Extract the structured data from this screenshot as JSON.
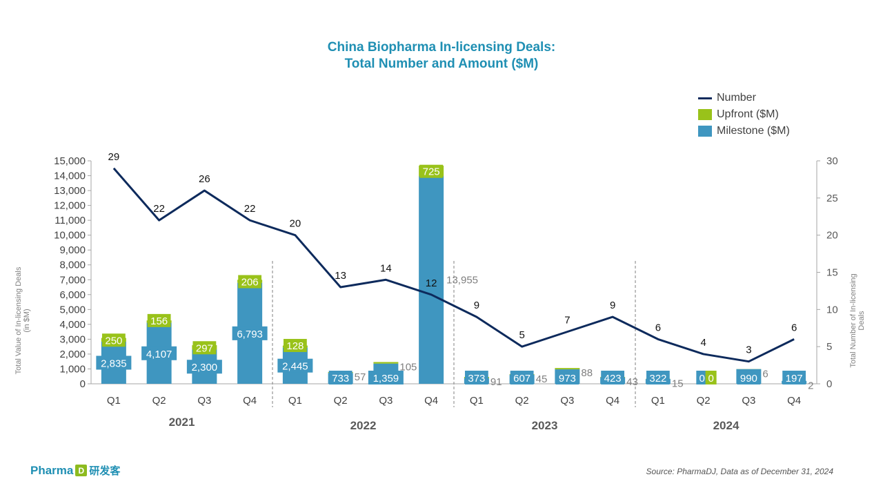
{
  "logo": {
    "brand": "Pharma",
    "mark": "D",
    "cn": "研发客"
  },
  "source": "Source: PharmaDJ, Data as of December 31, 2024",
  "colors": {
    "title": "#1f8fb3",
    "milestone": "#3f96c0",
    "upfront": "#99c21a",
    "number": "#0d2a5c",
    "axis": "#808080"
  },
  "chart_data": {
    "type": "bar",
    "title_lines": [
      "China Biopharma In-licensing Deals:",
      "Total Number and Amount ($M)"
    ],
    "categories": [
      "Q1",
      "Q2",
      "Q3",
      "Q4",
      "Q1",
      "Q2",
      "Q3",
      "Q4",
      "Q1",
      "Q2",
      "Q3",
      "Q4",
      "Q1",
      "Q2",
      "Q3",
      "Q4"
    ],
    "years": [
      {
        "label": "2021",
        "start": 0,
        "end": 3
      },
      {
        "label": "2022",
        "start": 4,
        "end": 7
      },
      {
        "label": "2023",
        "start": 8,
        "end": 11
      },
      {
        "label": "2024",
        "start": 12,
        "end": 15
      }
    ],
    "series": [
      {
        "name": "Milestone ($M)",
        "kind": "bar",
        "axis": "left",
        "values": [
          2835,
          4107,
          2300,
          6793,
          2445,
          733,
          1359,
          13955,
          373,
          607,
          973,
          423,
          322,
          0,
          990,
          197
        ],
        "labels": [
          "2,835",
          "4,107",
          "2,300",
          "6,793",
          "2,445",
          "733",
          "1,359",
          "13,955",
          "373",
          "607",
          "973",
          "423",
          "322",
          "0",
          "990",
          "197"
        ]
      },
      {
        "name": "Upfront ($M)",
        "kind": "bar",
        "axis": "left",
        "values": [
          250,
          156,
          297,
          206,
          128,
          57,
          105,
          725,
          91,
          45,
          88,
          43,
          15,
          0,
          6,
          2
        ],
        "labels": [
          "250",
          "156",
          "297",
          "206",
          "128",
          "57",
          "105",
          "725",
          "91",
          "45",
          "88",
          "43",
          "15",
          "0",
          "6",
          "2"
        ]
      },
      {
        "name": "Number",
        "kind": "line",
        "axis": "right",
        "values": [
          29,
          22,
          26,
          22,
          20,
          13,
          14,
          12,
          9,
          5,
          7,
          9,
          6,
          4,
          3,
          6
        ],
        "labels": [
          "29",
          "22",
          "26",
          "22",
          "20",
          "13",
          "14",
          "12",
          "9",
          "5",
          "7",
          "9",
          "6",
          "4",
          "3",
          "6"
        ]
      }
    ],
    "ylabel_left": "Total Value of In-licensing Deals (in $M)",
    "ylabel_right": "Total Number of In-licensing Deals",
    "ylim_left": [
      0,
      15000
    ],
    "ylim_right": [
      0,
      30
    ],
    "yticks_left": [
      "0",
      "1,000",
      "2,000",
      "3,000",
      "4,000",
      "5,000",
      "6,000",
      "7,000",
      "8,000",
      "9,000",
      "10,000",
      "11,000",
      "12,000",
      "13,000",
      "14,000",
      "15,000"
    ],
    "yticks_right": [
      "0",
      "5",
      "10",
      "15",
      "20",
      "25",
      "30"
    ],
    "legend_position": "top-right",
    "grid": false
  }
}
